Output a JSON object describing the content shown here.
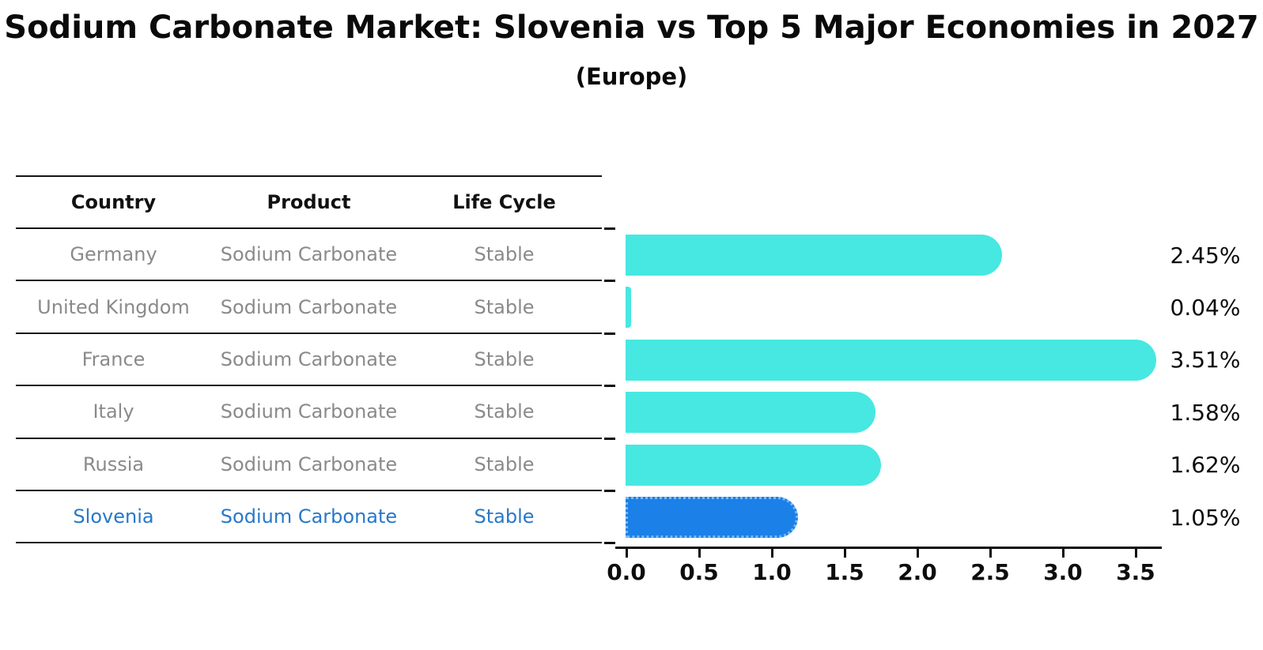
{
  "title": "Sodium Carbonate Market: Slovenia vs Top 5 Major Economies in 2027",
  "subtitle": "(Europe)",
  "table": {
    "headers": [
      "Country",
      "Product",
      "Life Cycle"
    ],
    "rows": [
      {
        "country": "Germany",
        "product": "Sodium Carbonate",
        "life_cycle": "Stable",
        "highlighted": false
      },
      {
        "country": "United Kingdom",
        "product": "Sodium Carbonate",
        "life_cycle": "Stable",
        "highlighted": false
      },
      {
        "country": "France",
        "product": "Sodium Carbonate",
        "life_cycle": "Stable",
        "highlighted": false
      },
      {
        "country": "Italy",
        "product": "Sodium Carbonate",
        "life_cycle": "Stable",
        "highlighted": false
      },
      {
        "country": "Russia",
        "product": "Sodium Carbonate",
        "life_cycle": "Stable",
        "highlighted": false
      },
      {
        "country": "Slovenia",
        "product": "Sodium Carbonate",
        "life_cycle": "Stable",
        "highlighted": true
      }
    ]
  },
  "chart_data": {
    "type": "bar",
    "orientation": "horizontal",
    "title": "Sodium Carbonate Market: Slovenia vs Top 5 Major Economies in 2027",
    "subtitle": "(Europe)",
    "categories": [
      "Germany",
      "United Kingdom",
      "France",
      "Italy",
      "Russia",
      "Slovenia"
    ],
    "values": [
      2.45,
      0.04,
      3.51,
      1.58,
      1.62,
      1.05
    ],
    "value_labels": [
      "2.45%",
      "0.04%",
      "3.51%",
      "1.58%",
      "1.62%",
      "1.05%"
    ],
    "unit": "%",
    "x_tick_labels": [
      "0.0",
      "0.5",
      "1.0",
      "1.5",
      "2.0",
      "2.5",
      "3.0",
      "3.5"
    ],
    "xlim": [
      0,
      3.7
    ],
    "grid": false,
    "legend": "none",
    "highlight_category": "Slovenia",
    "bar_color": "#46E8E1",
    "highlight_bar_color": "#1B80E8",
    "highlight_border_color": "#7DB9F0",
    "highlight_text_color": "#2878C8"
  }
}
